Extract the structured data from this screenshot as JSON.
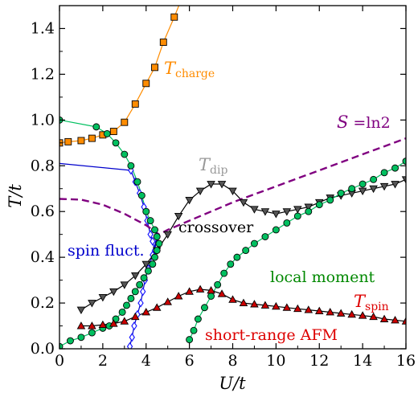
{
  "chart_data": {
    "type": "line",
    "title": "",
    "xlabel": "U/t",
    "ylabel": "T/t",
    "xlim": [
      0,
      16
    ],
    "ylim": [
      0,
      1.5
    ],
    "xticks": [
      "0",
      "2",
      "4",
      "6",
      "8",
      "10",
      "12",
      "14",
      "16"
    ],
    "yticks": [
      "0.0",
      "0.2",
      "0.4",
      "0.6",
      "0.8",
      "1.0",
      "1.2",
      "1.4"
    ],
    "grid": false,
    "legend": "none",
    "annotations": {
      "tcharge": {
        "text": "T",
        "sub": "charge",
        "color": "#ff8c00"
      },
      "tdip": {
        "text": "T",
        "sub": "dip",
        "color": "#999999"
      },
      "tspin": {
        "text": "T",
        "sub": "spin",
        "color": "#dd0000"
      },
      "entropy_lhs": "S",
      "entropy_rhs": " =ln2",
      "entropy_color": "#800080",
      "spin_fluct": "spin fluct.",
      "spin_fluct_color": "#0000cc",
      "crossover": "crossover",
      "local_moment": "local moment",
      "local_moment_color": "#008800",
      "short_range_afm": "short-range AFM",
      "short_range_afm_color": "#dd0000"
    },
    "series": [
      {
        "id": "tcharge",
        "marker": "square",
        "color": "#ff8c00",
        "line_color": "#ff8c00",
        "points": [
          [
            0,
            0.9
          ],
          [
            0.4,
            0.905
          ],
          [
            1.0,
            0.91
          ],
          [
            1.5,
            0.92
          ],
          [
            2.0,
            0.935
          ],
          [
            2.5,
            0.95
          ],
          [
            3.0,
            0.99
          ],
          [
            3.5,
            1.07
          ],
          [
            4.0,
            1.16
          ],
          [
            4.4,
            1.23
          ],
          [
            4.8,
            1.34
          ],
          [
            5.3,
            1.45
          ]
        ],
        "line_tail": [
          [
            5.3,
            1.45
          ],
          [
            5.6,
            1.52
          ]
        ]
      },
      {
        "id": "spin_fluct",
        "marker": "diamond",
        "color": "#1a1aff",
        "line_color": "#0000cc",
        "points": [
          [
            3.3,
            0.78
          ],
          [
            3.5,
            0.73
          ],
          [
            3.7,
            0.68
          ],
          [
            3.9,
            0.62
          ],
          [
            4.05,
            0.56
          ],
          [
            4.2,
            0.5
          ],
          [
            4.3,
            0.47
          ],
          [
            4.4,
            0.43
          ],
          [
            4.5,
            0.49
          ],
          [
            4.3,
            0.41
          ],
          [
            4.1,
            0.35
          ],
          [
            3.95,
            0.3
          ],
          [
            3.85,
            0.25
          ],
          [
            3.75,
            0.2
          ],
          [
            3.6,
            0.15
          ],
          [
            3.45,
            0.1
          ],
          [
            3.35,
            0.05
          ],
          [
            3.25,
            0.01
          ]
        ],
        "line_extra": [
          [
            0,
            0.81
          ],
          [
            3.3,
            0.78
          ]
        ]
      },
      {
        "id": "tdip",
        "marker": "triangle_down",
        "color": "#555555",
        "line_color": "#000000",
        "points": [
          [
            1.0,
            0.17
          ],
          [
            1.5,
            0.2
          ],
          [
            2.0,
            0.225
          ],
          [
            2.5,
            0.25
          ],
          [
            3.0,
            0.28
          ],
          [
            3.5,
            0.32
          ],
          [
            4.0,
            0.37
          ],
          [
            4.5,
            0.43
          ],
          [
            5.0,
            0.5
          ],
          [
            5.5,
            0.58
          ],
          [
            6.0,
            0.65
          ],
          [
            6.5,
            0.69
          ],
          [
            7.0,
            0.72
          ],
          [
            7.5,
            0.72
          ],
          [
            8.0,
            0.69
          ],
          [
            8.5,
            0.64
          ],
          [
            9.0,
            0.61
          ],
          [
            9.5,
            0.6
          ],
          [
            10.0,
            0.59
          ],
          [
            10.5,
            0.6
          ],
          [
            11.0,
            0.61
          ],
          [
            11.5,
            0.62
          ],
          [
            12.0,
            0.64
          ],
          [
            12.5,
            0.66
          ],
          [
            13.0,
            0.67
          ],
          [
            13.5,
            0.68
          ],
          [
            14.0,
            0.69
          ],
          [
            14.5,
            0.7
          ],
          [
            15.0,
            0.71
          ],
          [
            15.5,
            0.72
          ],
          [
            16.0,
            0.74
          ]
        ]
      },
      {
        "id": "local_moment",
        "marker": "circle",
        "color": "#00c060",
        "line_color": "#00c060",
        "points": [
          [
            0,
            1.0
          ],
          [
            1.7,
            0.97
          ],
          [
            2.2,
            0.94
          ],
          [
            2.6,
            0.9
          ],
          [
            3.0,
            0.85
          ],
          [
            3.3,
            0.8
          ],
          [
            3.6,
            0.73
          ],
          [
            3.8,
            0.67
          ],
          [
            4.0,
            0.6
          ],
          [
            4.2,
            0.56
          ],
          [
            4.4,
            0.52
          ],
          [
            4.5,
            0.49
          ],
          [
            4.6,
            0.46
          ],
          [
            4.5,
            0.43
          ],
          [
            4.4,
            0.4
          ],
          [
            4.3,
            0.37
          ],
          [
            4.1,
            0.34
          ],
          [
            3.9,
            0.31
          ],
          [
            3.7,
            0.28
          ],
          [
            3.5,
            0.25
          ],
          [
            3.3,
            0.22
          ],
          [
            3.1,
            0.19
          ],
          [
            2.9,
            0.16
          ],
          [
            2.6,
            0.13
          ],
          [
            2.3,
            0.1
          ],
          [
            2.0,
            0.09
          ],
          [
            1.5,
            0.07
          ],
          [
            1.0,
            0.05
          ],
          [
            0.5,
            0.035
          ],
          [
            0,
            0.01
          ]
        ],
        "branch2": [
          [
            6.0,
            0.04
          ],
          [
            6.2,
            0.08
          ],
          [
            6.4,
            0.13
          ],
          [
            6.7,
            0.18
          ],
          [
            7.0,
            0.23
          ],
          [
            7.3,
            0.28
          ],
          [
            7.6,
            0.33
          ],
          [
            7.9,
            0.37
          ],
          [
            8.2,
            0.4
          ],
          [
            8.6,
            0.43
          ],
          [
            9.0,
            0.46
          ],
          [
            9.5,
            0.49
          ],
          [
            10.0,
            0.52
          ],
          [
            10.5,
            0.55
          ],
          [
            11.0,
            0.58
          ],
          [
            11.5,
            0.6
          ],
          [
            12.0,
            0.63
          ],
          [
            12.5,
            0.65
          ],
          [
            13.0,
            0.68
          ],
          [
            13.5,
            0.7
          ],
          [
            14.0,
            0.72
          ],
          [
            14.5,
            0.74
          ],
          [
            15.0,
            0.77
          ],
          [
            15.5,
            0.79
          ],
          [
            16.0,
            0.82
          ]
        ],
        "line_extra": [
          [
            0,
            1.0
          ],
          [
            1.7,
            0.97
          ]
        ]
      },
      {
        "id": "tspin",
        "marker": "triangle_up",
        "color": "#cc0000",
        "line_color": "#000000",
        "points": [
          [
            1.0,
            0.1
          ],
          [
            1.5,
            0.1
          ],
          [
            2.0,
            0.105
          ],
          [
            2.5,
            0.11
          ],
          [
            3.0,
            0.12
          ],
          [
            3.5,
            0.14
          ],
          [
            4.0,
            0.16
          ],
          [
            4.5,
            0.18
          ],
          [
            5.0,
            0.205
          ],
          [
            5.5,
            0.23
          ],
          [
            6.0,
            0.25
          ],
          [
            6.5,
            0.26
          ],
          [
            7.0,
            0.255
          ],
          [
            7.5,
            0.24
          ],
          [
            8.0,
            0.215
          ],
          [
            8.5,
            0.2
          ],
          [
            9.0,
            0.195
          ],
          [
            9.5,
            0.19
          ],
          [
            10.0,
            0.185
          ],
          [
            10.5,
            0.18
          ],
          [
            11.0,
            0.175
          ],
          [
            11.5,
            0.17
          ],
          [
            12.0,
            0.165
          ],
          [
            12.5,
            0.16
          ],
          [
            13.0,
            0.155
          ],
          [
            13.5,
            0.15
          ],
          [
            14.0,
            0.145
          ],
          [
            14.5,
            0.14
          ],
          [
            15.0,
            0.13
          ],
          [
            15.5,
            0.125
          ],
          [
            16.0,
            0.12
          ]
        ]
      },
      {
        "id": "entropy",
        "marker": "none",
        "color": "#800080",
        "dashed": true,
        "points": [
          [
            0,
            0.655
          ],
          [
            1.0,
            0.652
          ],
          [
            2.0,
            0.63
          ],
          [
            3.0,
            0.59
          ],
          [
            4.0,
            0.54
          ],
          [
            4.6,
            0.5
          ],
          [
            5.0,
            0.52
          ],
          [
            6.0,
            0.56
          ],
          [
            7.0,
            0.6
          ],
          [
            8.0,
            0.64
          ],
          [
            9.0,
            0.675
          ],
          [
            10.0,
            0.71
          ],
          [
            11.0,
            0.745
          ],
          [
            12.0,
            0.78
          ],
          [
            13.0,
            0.815
          ],
          [
            14.0,
            0.85
          ],
          [
            15.0,
            0.885
          ],
          [
            16.0,
            0.92
          ]
        ]
      }
    ]
  }
}
